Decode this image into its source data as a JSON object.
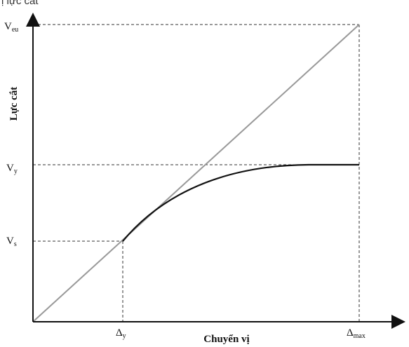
{
  "top_caption": "ị lực cắt",
  "axes": {
    "x_title": "Chuyển vị",
    "y_title": "Lực cắt"
  },
  "y_labels": {
    "veu": {
      "main": "V",
      "sub": "eu"
    },
    "vy": {
      "main": "V",
      "sub": "y"
    },
    "vs": {
      "main": "V",
      "sub": "s"
    }
  },
  "x_labels": {
    "dy": {
      "main": "Δ",
      "sub": "y"
    },
    "dmax": {
      "main": "Δ",
      "sub": "max"
    }
  },
  "colors": {
    "axis": "#111111",
    "elastic_line": "#999999",
    "curve": "#111111",
    "guide": "#333333",
    "plateau": "#111111"
  }
}
